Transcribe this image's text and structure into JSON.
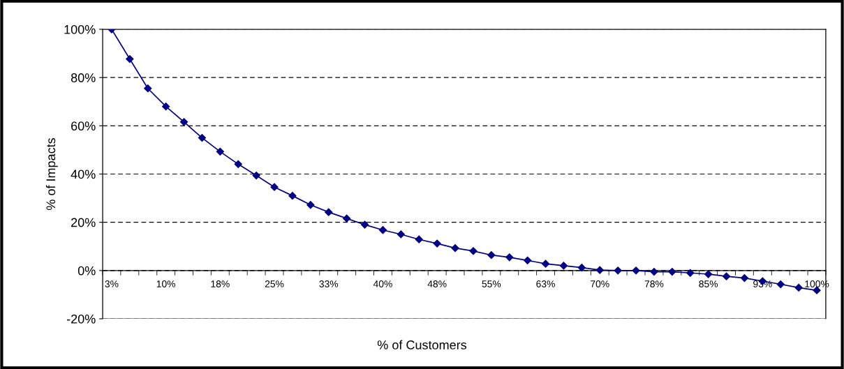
{
  "chart_data": {
    "type": "line",
    "xlabel": "% of Customers",
    "ylabel": "% of Impacts",
    "categories": [
      "3%",
      null,
      null,
      "10%",
      null,
      null,
      "18%",
      null,
      null,
      "25%",
      null,
      null,
      "33%",
      null,
      null,
      "40%",
      null,
      null,
      "48%",
      null,
      null,
      "55%",
      null,
      null,
      "63%",
      null,
      null,
      "70%",
      null,
      null,
      "78%",
      null,
      null,
      "85%",
      null,
      null,
      "93%",
      null,
      null,
      "100%"
    ],
    "series": [
      {
        "color": "#000080",
        "values": [
          100,
          87.7,
          75.5,
          68.0,
          61.6,
          55.0,
          49.3,
          44.1,
          39.4,
          34.6,
          31.0,
          27.2,
          24.2,
          21.6,
          19.0,
          16.8,
          15.0,
          12.9,
          11.2,
          9.3,
          8.1,
          6.4,
          5.5,
          4.2,
          2.8,
          2.0,
          1.2,
          0.2,
          0,
          0,
          -0.5,
          -0.5,
          -1.0,
          -1.5,
          -2.4,
          -3.1,
          -4.4,
          -5.7,
          -7.1,
          -8.2
        ]
      }
    ],
    "ylim": [
      -20,
      100
    ],
    "yticks": [
      {
        "value": -20,
        "label": "-20%"
      },
      {
        "value": 0,
        "label": "0%"
      },
      {
        "value": 20,
        "label": "20%"
      },
      {
        "value": 40,
        "label": "40%"
      },
      {
        "value": 60,
        "label": "60%"
      },
      {
        "value": 80,
        "label": "80%"
      },
      {
        "value": 100,
        "label": "100%"
      }
    ],
    "grid": "y",
    "marker": "diamond",
    "line_style": "solid",
    "legend": false
  }
}
